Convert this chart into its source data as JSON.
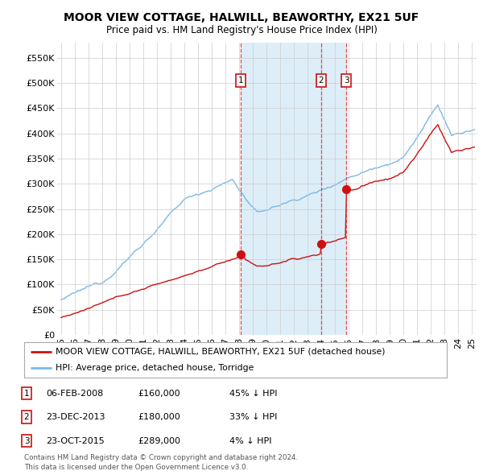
{
  "title": "MOOR VIEW COTTAGE, HALWILL, BEAWORTHY, EX21 5UF",
  "subtitle": "Price paid vs. HM Land Registry's House Price Index (HPI)",
  "ylabel_ticks": [
    "£0",
    "£50K",
    "£100K",
    "£150K",
    "£200K",
    "£250K",
    "£300K",
    "£350K",
    "£400K",
    "£450K",
    "£500K",
    "£550K"
  ],
  "ytick_vals": [
    0,
    50000,
    100000,
    150000,
    200000,
    250000,
    300000,
    350000,
    400000,
    450000,
    500000,
    550000
  ],
  "ylim": [
    0,
    580000
  ],
  "xlim_start": 1994.7,
  "xlim_end": 2025.3,
  "hpi_color": "#7ab8e8",
  "hpi_fill_color": "#d0e8f8",
  "price_color": "#cc1111",
  "sale_marker_color": "#cc1111",
  "sale_dates": [
    2008.09,
    2013.97,
    2015.81
  ],
  "sale_prices": [
    160000,
    180000,
    289000
  ],
  "sale_labels": [
    "1",
    "2",
    "3"
  ],
  "vline_color": "#dd3333",
  "shade_color": "#ddeef8",
  "legend_house_label": "MOOR VIEW COTTAGE, HALWILL, BEAWORTHY, EX21 5UF (detached house)",
  "legend_hpi_label": "HPI: Average price, detached house, Torridge",
  "table_rows": [
    [
      "1",
      "06-FEB-2008",
      "£160,000",
      "45% ↓ HPI"
    ],
    [
      "2",
      "23-DEC-2013",
      "£180,000",
      "33% ↓ HPI"
    ],
    [
      "3",
      "23-OCT-2015",
      "£289,000",
      "4% ↓ HPI"
    ]
  ],
  "footnote": "Contains HM Land Registry data © Crown copyright and database right 2024.\nThis data is licensed under the Open Government Licence v3.0.",
  "background_color": "#ffffff",
  "grid_color": "#cccccc"
}
